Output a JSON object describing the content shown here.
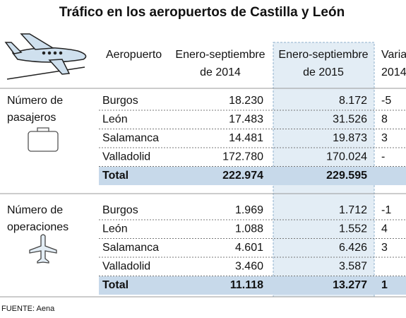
{
  "title": "Tráfico en los aeropuertos de Castilla y León",
  "table": {
    "columns": [
      [
        "Aeropuerto"
      ],
      [
        "Enero-septiembre",
        "de 2014"
      ],
      [
        "Enero-septiembre",
        "de 2015"
      ],
      [
        "Varia",
        "2014"
      ]
    ],
    "sections": [
      {
        "label": [
          "Número de",
          "pasajeros"
        ],
        "rows": [
          [
            "Burgos",
            "18.230",
            "8.172",
            "-5"
          ],
          [
            "León",
            "17.483",
            "31.526",
            "8"
          ],
          [
            "Salamanca",
            "14.481",
            "19.873",
            "3"
          ],
          [
            "Valladolid",
            "172.780",
            "170.024",
            "-"
          ],
          [
            "Total",
            "222.974",
            "229.595"
          ]
        ]
      },
      {
        "label": [
          "Número de",
          "operaciones"
        ],
        "rows": [
          [
            "Burgos",
            "1.969",
            "1.712",
            "-1"
          ],
          [
            "León",
            "1.088",
            "1.552",
            "4"
          ],
          [
            "Salamanca",
            "4.601",
            "6.426",
            "3"
          ],
          [
            "Valladolid",
            "3.460",
            "3.587"
          ],
          [
            "Total",
            "11.118",
            "13.277",
            "1"
          ]
        ]
      }
    ]
  },
  "source": "FUENTE: Aena"
}
